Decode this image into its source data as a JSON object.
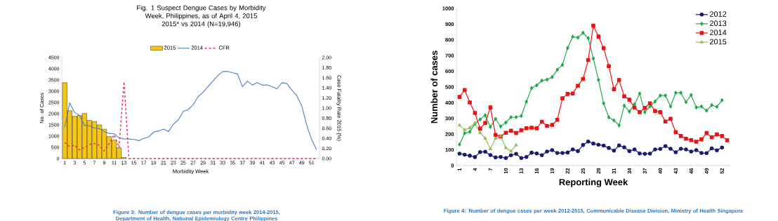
{
  "chart_data": [
    {
      "type": "bar",
      "title": "Fig. 1 Suspect Dengue Cases by Morbidity Week, Philippines, as of April 4, 2015",
      "subtitle": "2015* vs 2014 (N=19,946)",
      "xlabel": "Morbidity Week",
      "ylabel": "No. of Cases",
      "y2label": "Case Fatality Rate 2015 (%)",
      "categories": [
        "1",
        null,
        "3",
        null,
        "5",
        null,
        "7",
        null,
        "9",
        null,
        "11",
        null,
        "13",
        null,
        "15",
        null,
        "17",
        null,
        "19",
        null,
        "21",
        null,
        "23",
        null,
        "25",
        null,
        "27",
        null,
        "29",
        null,
        "31",
        null,
        "33",
        null,
        "35",
        null,
        "37",
        null,
        "39",
        null,
        "41",
        null,
        "43",
        null,
        "45",
        null,
        "47",
        null,
        "49",
        null,
        "51",
        null
      ],
      "series": [
        {
          "name": "2015",
          "type": "bar",
          "color": "#f5c518",
          "values": [
            3380,
            2130,
            1880,
            1920,
            2010,
            1700,
            1650,
            1500,
            1310,
            980,
            820,
            480,
            50,
            null,
            null,
            null,
            null,
            null,
            null,
            null,
            null,
            null,
            null,
            null,
            null,
            null,
            null,
            null,
            null,
            null,
            null,
            null,
            null,
            null,
            null,
            null,
            null,
            null,
            null,
            null,
            null,
            null,
            null,
            null,
            null,
            null,
            null,
            null,
            null,
            null,
            null,
            null
          ]
        },
        {
          "name": "2014",
          "type": "line",
          "color": "#4f81bd",
          "values": [
            1400,
            2480,
            2050,
            1920,
            1480,
            1460,
            1360,
            1340,
            1200,
            1120,
            1100,
            920,
            880,
            870,
            850,
            800,
            900,
            960,
            1180,
            1230,
            1310,
            1200,
            1530,
            1720,
            2100,
            2180,
            2400,
            2750,
            2950,
            3200,
            3450,
            3700,
            3880,
            3880,
            3820,
            3770,
            3200,
            3450,
            3270,
            3380,
            3270,
            3280,
            3200,
            3110,
            3380,
            3340,
            3050,
            2800,
            2350,
            1500,
            850,
            400
          ]
        },
        {
          "name": "CFR",
          "type": "line",
          "axis": "y2",
          "line_style": "dashed",
          "color": "#e8344e",
          "values": [
            0.32,
            0.24,
            0.26,
            0.17,
            0.22,
            0.28,
            0.3,
            0.26,
            0.15,
            0.3,
            0.47,
            0.22,
            1.52,
            0,
            0,
            0,
            0,
            0,
            0,
            0,
            0,
            0,
            0,
            0,
            0,
            0,
            0,
            0,
            0,
            0,
            0,
            0,
            0,
            0,
            0,
            0,
            0,
            0,
            0,
            0,
            0,
            0,
            0,
            0,
            0,
            0,
            0,
            0,
            0,
            0,
            0,
            0
          ]
        }
      ],
      "ylim": [
        0,
        4500
      ],
      "yticks": [
        0,
        500,
        1000,
        1500,
        2000,
        2500,
        3000,
        3500,
        4000,
        4500
      ],
      "y2lim": [
        0,
        2
      ],
      "y2ticks": [
        {
          "value": 0,
          "label": "0.00"
        },
        {
          "value": 0.2,
          "label": "0.20"
        },
        {
          "value": 0.4,
          "label": "0.40"
        },
        {
          "value": 0.6,
          "label": "0.60"
        },
        {
          "value": 0.8,
          "label": "0.80"
        },
        {
          "value": 1,
          "label": "1.00"
        },
        {
          "value": 1.2,
          "label": "1.20"
        },
        {
          "value": 1.4,
          "label": "1.40"
        },
        {
          "value": 1.6,
          "label": "1.60"
        },
        {
          "value": 1.8,
          "label": "1.80"
        },
        {
          "value": 2,
          "label": "2.00"
        }
      ],
      "legend": "top",
      "annotations": [
        "Figure 3: Number of dengue cases per morbidity week 2014-2015, Department of Health, National Epidemiology Centre Philippines"
      ]
    },
    {
      "type": "line",
      "xlabel": "Reporting Week",
      "ylabel": "Number of cases",
      "categories": [
        "1",
        null,
        null,
        "4",
        null,
        null,
        "7",
        null,
        null,
        "10",
        null,
        null,
        "13",
        null,
        null,
        "16",
        null,
        null,
        "19",
        null,
        null,
        "22",
        null,
        null,
        "25",
        null,
        null,
        "28",
        null,
        null,
        "31",
        null,
        null,
        "34",
        null,
        null,
        "37",
        null,
        null,
        "40",
        null,
        null,
        "43",
        null,
        null,
        "46",
        null,
        null,
        "49",
        null,
        null,
        "52",
        null
      ],
      "series": [
        {
          "name": "2012",
          "color": "#1a1a6e",
          "marker": "circle",
          "values": [
            76,
            69,
            63,
            54,
            86,
            88,
            67,
            52,
            55,
            48,
            66,
            75,
            48,
            55,
            82,
            77,
            66,
            89,
            98,
            80,
            80,
            83,
            103,
            92,
            131,
            153,
            140,
            133,
            127,
            112,
            95,
            128,
            116,
            92,
            103,
            77,
            75,
            76,
            103,
            106,
            124,
            107,
            85,
            107,
            103,
            89,
            98,
            80,
            79,
            109,
            97,
            115,
            null
          ]
        },
        {
          "name": "2013",
          "color": "#1faa4a",
          "marker": "diamond",
          "values": [
            134,
            206,
            215,
            267,
            294,
            320,
            246,
            297,
            249,
            274,
            308,
            308,
            316,
            407,
            493,
            511,
            541,
            547,
            563,
            610,
            641,
            748,
            820,
            814,
            845,
            811,
            681,
            545,
            396,
            307,
            288,
            256,
            381,
            344,
            390,
            458,
            340,
            376,
            408,
            446,
            446,
            376,
            463,
            463,
            404,
            449,
            370,
            376,
            349,
            385,
            374,
            416,
            null
          ]
        },
        {
          "name": "2014",
          "color": "#ee1111",
          "marker": "square",
          "values": [
            437,
            481,
            402,
            335,
            235,
            271,
            370,
            195,
            185,
            209,
            222,
            207,
            225,
            238,
            241,
            237,
            279,
            252,
            259,
            291,
            428,
            456,
            459,
            508,
            551,
            672,
            890,
            821,
            747,
            633,
            486,
            545,
            441,
            419,
            368,
            340,
            367,
            396,
            347,
            340,
            280,
            298,
            213,
            188,
            171,
            162,
            152,
            167,
            207,
            180,
            198,
            188,
            161
          ]
        },
        {
          "name": "2015",
          "color": "#9bbb59",
          "marker": "triangle",
          "values": [
            256,
            227,
            240,
            270,
            209,
            173,
            106,
            173,
            188,
            113,
            91,
            130,
            null,
            null,
            null,
            null,
            null,
            null,
            null,
            null,
            null,
            null,
            null,
            null,
            null,
            null,
            null,
            null,
            null,
            null,
            null,
            null,
            null,
            null,
            null,
            null,
            null,
            null,
            null,
            null,
            null,
            null,
            null,
            null,
            null,
            null,
            null,
            null,
            null,
            null,
            null,
            null,
            null
          ]
        }
      ],
      "ylim": [
        0,
        1000
      ],
      "yticks": [
        0,
        100,
        200,
        300,
        400,
        500,
        600,
        700,
        800,
        900,
        1000
      ],
      "legend": "top right",
      "annotations": [
        "Figure 4: Number of dengue cases per week 2012-2015, Communicable Disease Division, Ministry of Health Singapore"
      ]
    }
  ]
}
